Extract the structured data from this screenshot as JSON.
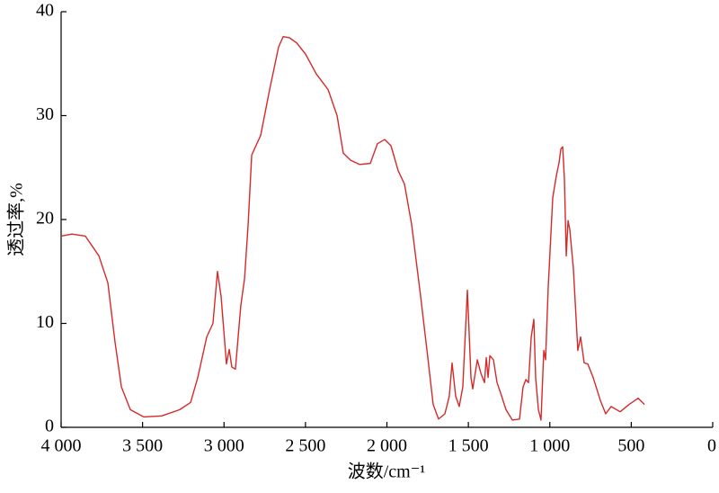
{
  "chart_data": {
    "type": "line",
    "xlabel": "波数/cm⁻¹",
    "ylabel": "透过率,%",
    "x": [
      4000,
      3934,
      3851,
      3768,
      3713,
      3669,
      3630,
      3575,
      3492,
      3382,
      3272,
      3205,
      3161,
      3106,
      3068,
      3040,
      3018,
      2985,
      2968,
      2952,
      2930,
      2897,
      2874,
      2852,
      2830,
      2775,
      2720,
      2665,
      2637,
      2599,
      2554,
      2499,
      2433,
      2361,
      2306,
      2268,
      2223,
      2168,
      2102,
      2058,
      2014,
      1975,
      1931,
      1892,
      1848,
      1793,
      1754,
      1716,
      1683,
      1644,
      1617,
      1600,
      1578,
      1556,
      1534,
      1506,
      1484,
      1473,
      1445,
      1423,
      1401,
      1390,
      1379,
      1368,
      1346,
      1324,
      1302,
      1269,
      1230,
      1186,
      1164,
      1147,
      1131,
      1114,
      1098,
      1087,
      1070,
      1054,
      1037,
      1026,
      1010,
      982,
      960,
      943,
      932,
      921,
      910,
      899,
      888,
      877,
      855,
      828,
      811,
      789,
      767,
      734,
      690,
      657,
      624,
      568,
      513,
      458,
      419
    ],
    "values": [
      18.4,
      18.6,
      18.4,
      16.5,
      13.9,
      8.2,
      3.9,
      1.7,
      1.0,
      1.1,
      1.7,
      2.4,
      4.8,
      8.7,
      10.0,
      15.0,
      12.6,
      6.1,
      7.5,
      5.8,
      5.6,
      11.7,
      14.3,
      19.5,
      26.2,
      28.1,
      32.5,
      36.6,
      37.6,
      37.5,
      37.0,
      35.9,
      34.0,
      32.5,
      30.0,
      26.4,
      25.7,
      25.3,
      25.4,
      27.3,
      27.7,
      27.1,
      24.7,
      23.4,
      19.5,
      12.6,
      7.4,
      2.2,
      0.8,
      1.3,
      3.0,
      6.2,
      3.0,
      2.0,
      3.9,
      13.2,
      4.8,
      3.7,
      6.5,
      5.2,
      4.3,
      6.7,
      4.8,
      6.9,
      6.5,
      4.3,
      3.3,
      1.7,
      0.7,
      0.8,
      3.9,
      4.6,
      4.3,
      8.7,
      10.4,
      4.8,
      1.7,
      0.7,
      7.4,
      6.5,
      13.4,
      22.1,
      24.2,
      25.5,
      26.8,
      27.0,
      23.8,
      16.5,
      19.9,
      19.0,
      15.2,
      7.4,
      8.7,
      6.2,
      6.1,
      4.8,
      2.6,
      1.3,
      2.0,
      1.5,
      2.2,
      2.8,
      2.2
    ],
    "color": "#d42a2a",
    "xlim": [
      4000,
      0
    ],
    "xticks": [
      {
        "value": 4000,
        "label": "4 000"
      },
      {
        "value": 3500,
        "label": "3 500"
      },
      {
        "value": 3000,
        "label": "3 000"
      },
      {
        "value": 2500,
        "label": "2 500"
      },
      {
        "value": 2000,
        "label": "2 000"
      },
      {
        "value": 1500,
        "label": "1 500"
      },
      {
        "value": 1000,
        "label": "1 000"
      },
      500,
      0
    ],
    "ylim": [
      0,
      40
    ],
    "yticks": [
      0,
      10,
      20,
      30,
      40
    ],
    "grid": false
  }
}
